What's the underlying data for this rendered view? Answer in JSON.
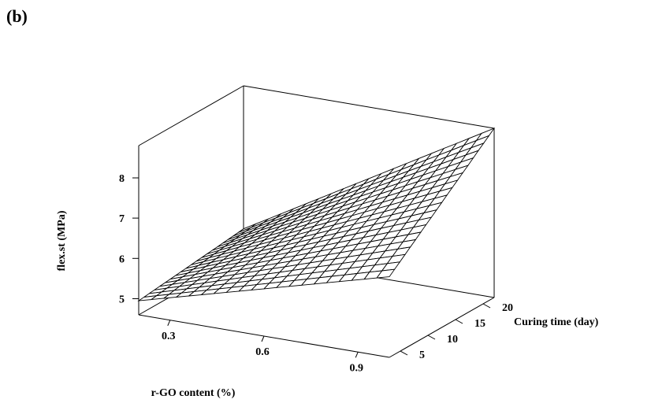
{
  "panel_label": "(b)",
  "chart_data": {
    "type": "surface",
    "title": "",
    "xlabel": "r-GO content (%)",
    "ylabel": "Curing time (day)",
    "zlabel": "flex.st (MPa)",
    "x_ticks": [
      0.3,
      0.6,
      0.9
    ],
    "y_ticks": [
      5,
      10,
      15,
      20
    ],
    "z_ticks": [
      5,
      6,
      7,
      8
    ],
    "xlim": [
      0.2,
      1.0
    ],
    "ylim": [
      3,
      22
    ],
    "zlim": [
      4.6,
      8.8
    ],
    "grid": [
      20,
      20
    ],
    "surface_corners": {
      "x0.2_y3": 4.95,
      "x1.0_y3": 6.6,
      "x0.2_y22": 5.25,
      "x1.0_y22": 8.8
    },
    "colors": {
      "line": "#000000",
      "fill": "#ffffff"
    }
  }
}
